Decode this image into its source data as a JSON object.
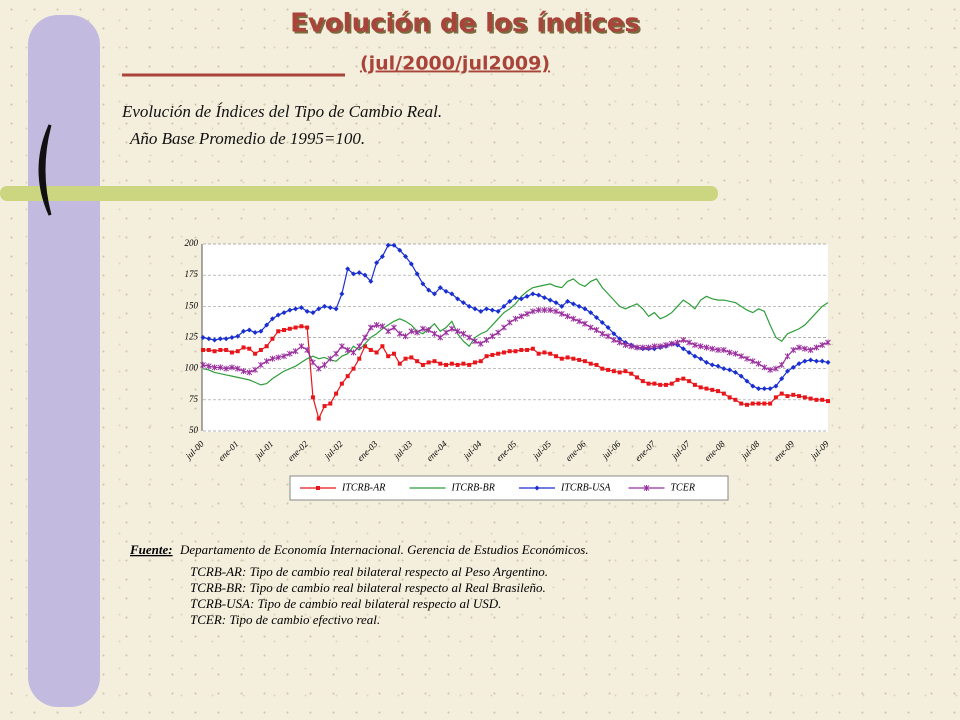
{
  "header": {
    "title": "Evolución de los índices",
    "subtitle": "(jul/2000/jul2009)"
  },
  "chart_data": {
    "type": "line",
    "title": "Evolución de Índices del Tipo de Cambio Real.",
    "subtitle": "Año Base Promedio de 1995=100.",
    "categories": [
      "jul-00",
      null,
      null,
      null,
      null,
      null,
      "ene-01",
      null,
      null,
      null,
      null,
      null,
      "jul-01",
      null,
      null,
      null,
      null,
      null,
      "ene-02",
      null,
      null,
      null,
      null,
      null,
      "jul-02",
      null,
      null,
      null,
      null,
      null,
      "ene-03",
      null,
      null,
      null,
      null,
      null,
      "jul-03",
      null,
      null,
      null,
      null,
      null,
      "ene-04",
      null,
      null,
      null,
      null,
      null,
      "jul-04",
      null,
      null,
      null,
      null,
      null,
      "ene-05",
      null,
      null,
      null,
      null,
      null,
      "jul-05",
      null,
      null,
      null,
      null,
      null,
      "ene-06",
      null,
      null,
      null,
      null,
      null,
      "jul-06",
      null,
      null,
      null,
      null,
      null,
      "ene-07",
      null,
      null,
      null,
      null,
      null,
      "jul-07",
      null,
      null,
      null,
      null,
      null,
      "ene-08",
      null,
      null,
      null,
      null,
      null,
      "jul-08",
      null,
      null,
      null,
      null,
      null,
      "ene-09",
      null,
      null,
      null,
      null,
      null,
      "jul-09"
    ],
    "ylim": [
      50,
      200
    ],
    "yticks": [
      50,
      75,
      100,
      125,
      150,
      175,
      200
    ],
    "grid": true,
    "legend": "bottom",
    "series": [
      {
        "name": "ITCRB-AR",
        "color": "#e8161b",
        "marker": "square",
        "values": [
          115,
          115,
          114,
          115,
          115,
          113,
          114,
          117,
          116,
          112,
          115,
          118,
          124,
          130,
          131,
          132,
          133,
          134,
          133,
          77,
          60,
          70,
          72,
          80,
          88,
          94,
          100,
          108,
          118,
          115,
          113,
          118,
          110,
          112,
          104,
          108,
          109,
          106,
          103,
          105,
          106,
          104,
          103,
          104,
          103,
          104,
          103,
          105,
          106,
          110,
          111,
          112,
          113,
          114,
          114,
          115,
          115,
          116,
          112,
          113,
          112,
          110,
          108,
          109,
          108,
          107,
          106,
          104,
          103,
          100,
          99,
          98,
          97,
          98,
          96,
          93,
          90,
          88,
          88,
          87,
          87,
          88,
          91,
          92,
          90,
          87,
          85,
          84,
          83,
          82,
          80,
          77,
          75,
          72,
          71,
          72,
          72,
          72,
          72,
          77,
          80,
          78,
          79,
          78,
          77,
          76,
          75,
          75,
          74
        ]
      },
      {
        "name": "ITCRB-BR",
        "color": "#2e9e3a",
        "values": [
          100,
          99,
          97,
          96,
          95,
          94,
          93,
          92,
          91,
          89,
          87,
          88,
          92,
          95,
          98,
          100,
          102,
          105,
          108,
          110,
          108,
          109,
          107,
          106,
          110,
          112,
          118,
          115,
          120,
          125,
          128,
          132,
          135,
          138,
          140,
          138,
          135,
          130,
          128,
          132,
          136,
          130,
          133,
          138,
          128,
          122,
          118,
          125,
          128,
          130,
          135,
          140,
          145,
          148,
          152,
          158,
          162,
          165,
          166,
          167,
          168,
          166,
          165,
          170,
          172,
          168,
          166,
          170,
          172,
          165,
          160,
          155,
          150,
          148,
          150,
          152,
          148,
          142,
          145,
          140,
          142,
          145,
          150,
          155,
          152,
          148,
          155,
          158,
          156,
          155,
          155,
          154,
          153,
          150,
          147,
          145,
          148,
          146,
          135,
          125,
          122,
          128,
          130,
          132,
          135,
          140,
          145,
          150,
          153
        ]
      },
      {
        "name": "ITCRB-USA",
        "color": "#1a2fd0",
        "marker": "diamond",
        "values": [
          125,
          124,
          123,
          124,
          124,
          125,
          126,
          130,
          131,
          129,
          130,
          135,
          140,
          143,
          145,
          147,
          148,
          149,
          146,
          145,
          148,
          150,
          149,
          148,
          160,
          180,
          176,
          177,
          175,
          170,
          185,
          190,
          199,
          199,
          195,
          190,
          184,
          176,
          168,
          163,
          160,
          165,
          162,
          160,
          156,
          153,
          150,
          148,
          146,
          148,
          147,
          146,
          150,
          154,
          157,
          156,
          158,
          160,
          159,
          157,
          155,
          153,
          150,
          154,
          152,
          150,
          148,
          145,
          141,
          137,
          133,
          128,
          124,
          121,
          119,
          117,
          116,
          116,
          116,
          117,
          118,
          120,
          119,
          116,
          113,
          110,
          108,
          105,
          103,
          102,
          100,
          99,
          97,
          94,
          90,
          86,
          84,
          84,
          84,
          86,
          92,
          98,
          101,
          104,
          106,
          107,
          106,
          106,
          105
        ]
      },
      {
        "name": "TCER",
        "color": "#9b2f9e",
        "marker": "star",
        "values": [
          103,
          102,
          101,
          101,
          100,
          101,
          100,
          98,
          97,
          99,
          103,
          106,
          108,
          109,
          110,
          112,
          114,
          118,
          115,
          105,
          100,
          103,
          108,
          112,
          118,
          115,
          113,
          118,
          125,
          133,
          135,
          134,
          130,
          133,
          128,
          126,
          130,
          129,
          132,
          131,
          128,
          125,
          129,
          132,
          130,
          128,
          125,
          122,
          120,
          123,
          126,
          129,
          133,
          137,
          140,
          142,
          144,
          146,
          147,
          147,
          147,
          146,
          144,
          142,
          140,
          138,
          136,
          133,
          131,
          128,
          126,
          123,
          121,
          119,
          118,
          117,
          117,
          117,
          118,
          118,
          119,
          120,
          121,
          123,
          121,
          119,
          118,
          117,
          116,
          115,
          115,
          113,
          112,
          110,
          108,
          106,
          104,
          101,
          99,
          100,
          103,
          110,
          115,
          117,
          116,
          115,
          117,
          119,
          121
        ]
      }
    ]
  },
  "source": {
    "label": "Fuente:",
    "text": "Departamento de Economía Internacional. Gerencia de Estudios Económicos.",
    "lines": [
      "TCRB-AR: Tipo de cambio real bilateral respecto al Peso Argentino.",
      "TCRB-BR: Tipo de cambio real bilateral respecto al Real Brasileño.",
      "TCRB-USA: Tipo de cambio real bilateral respecto al USD.",
      "TCER: Tipo de cambio efectivo real."
    ]
  }
}
